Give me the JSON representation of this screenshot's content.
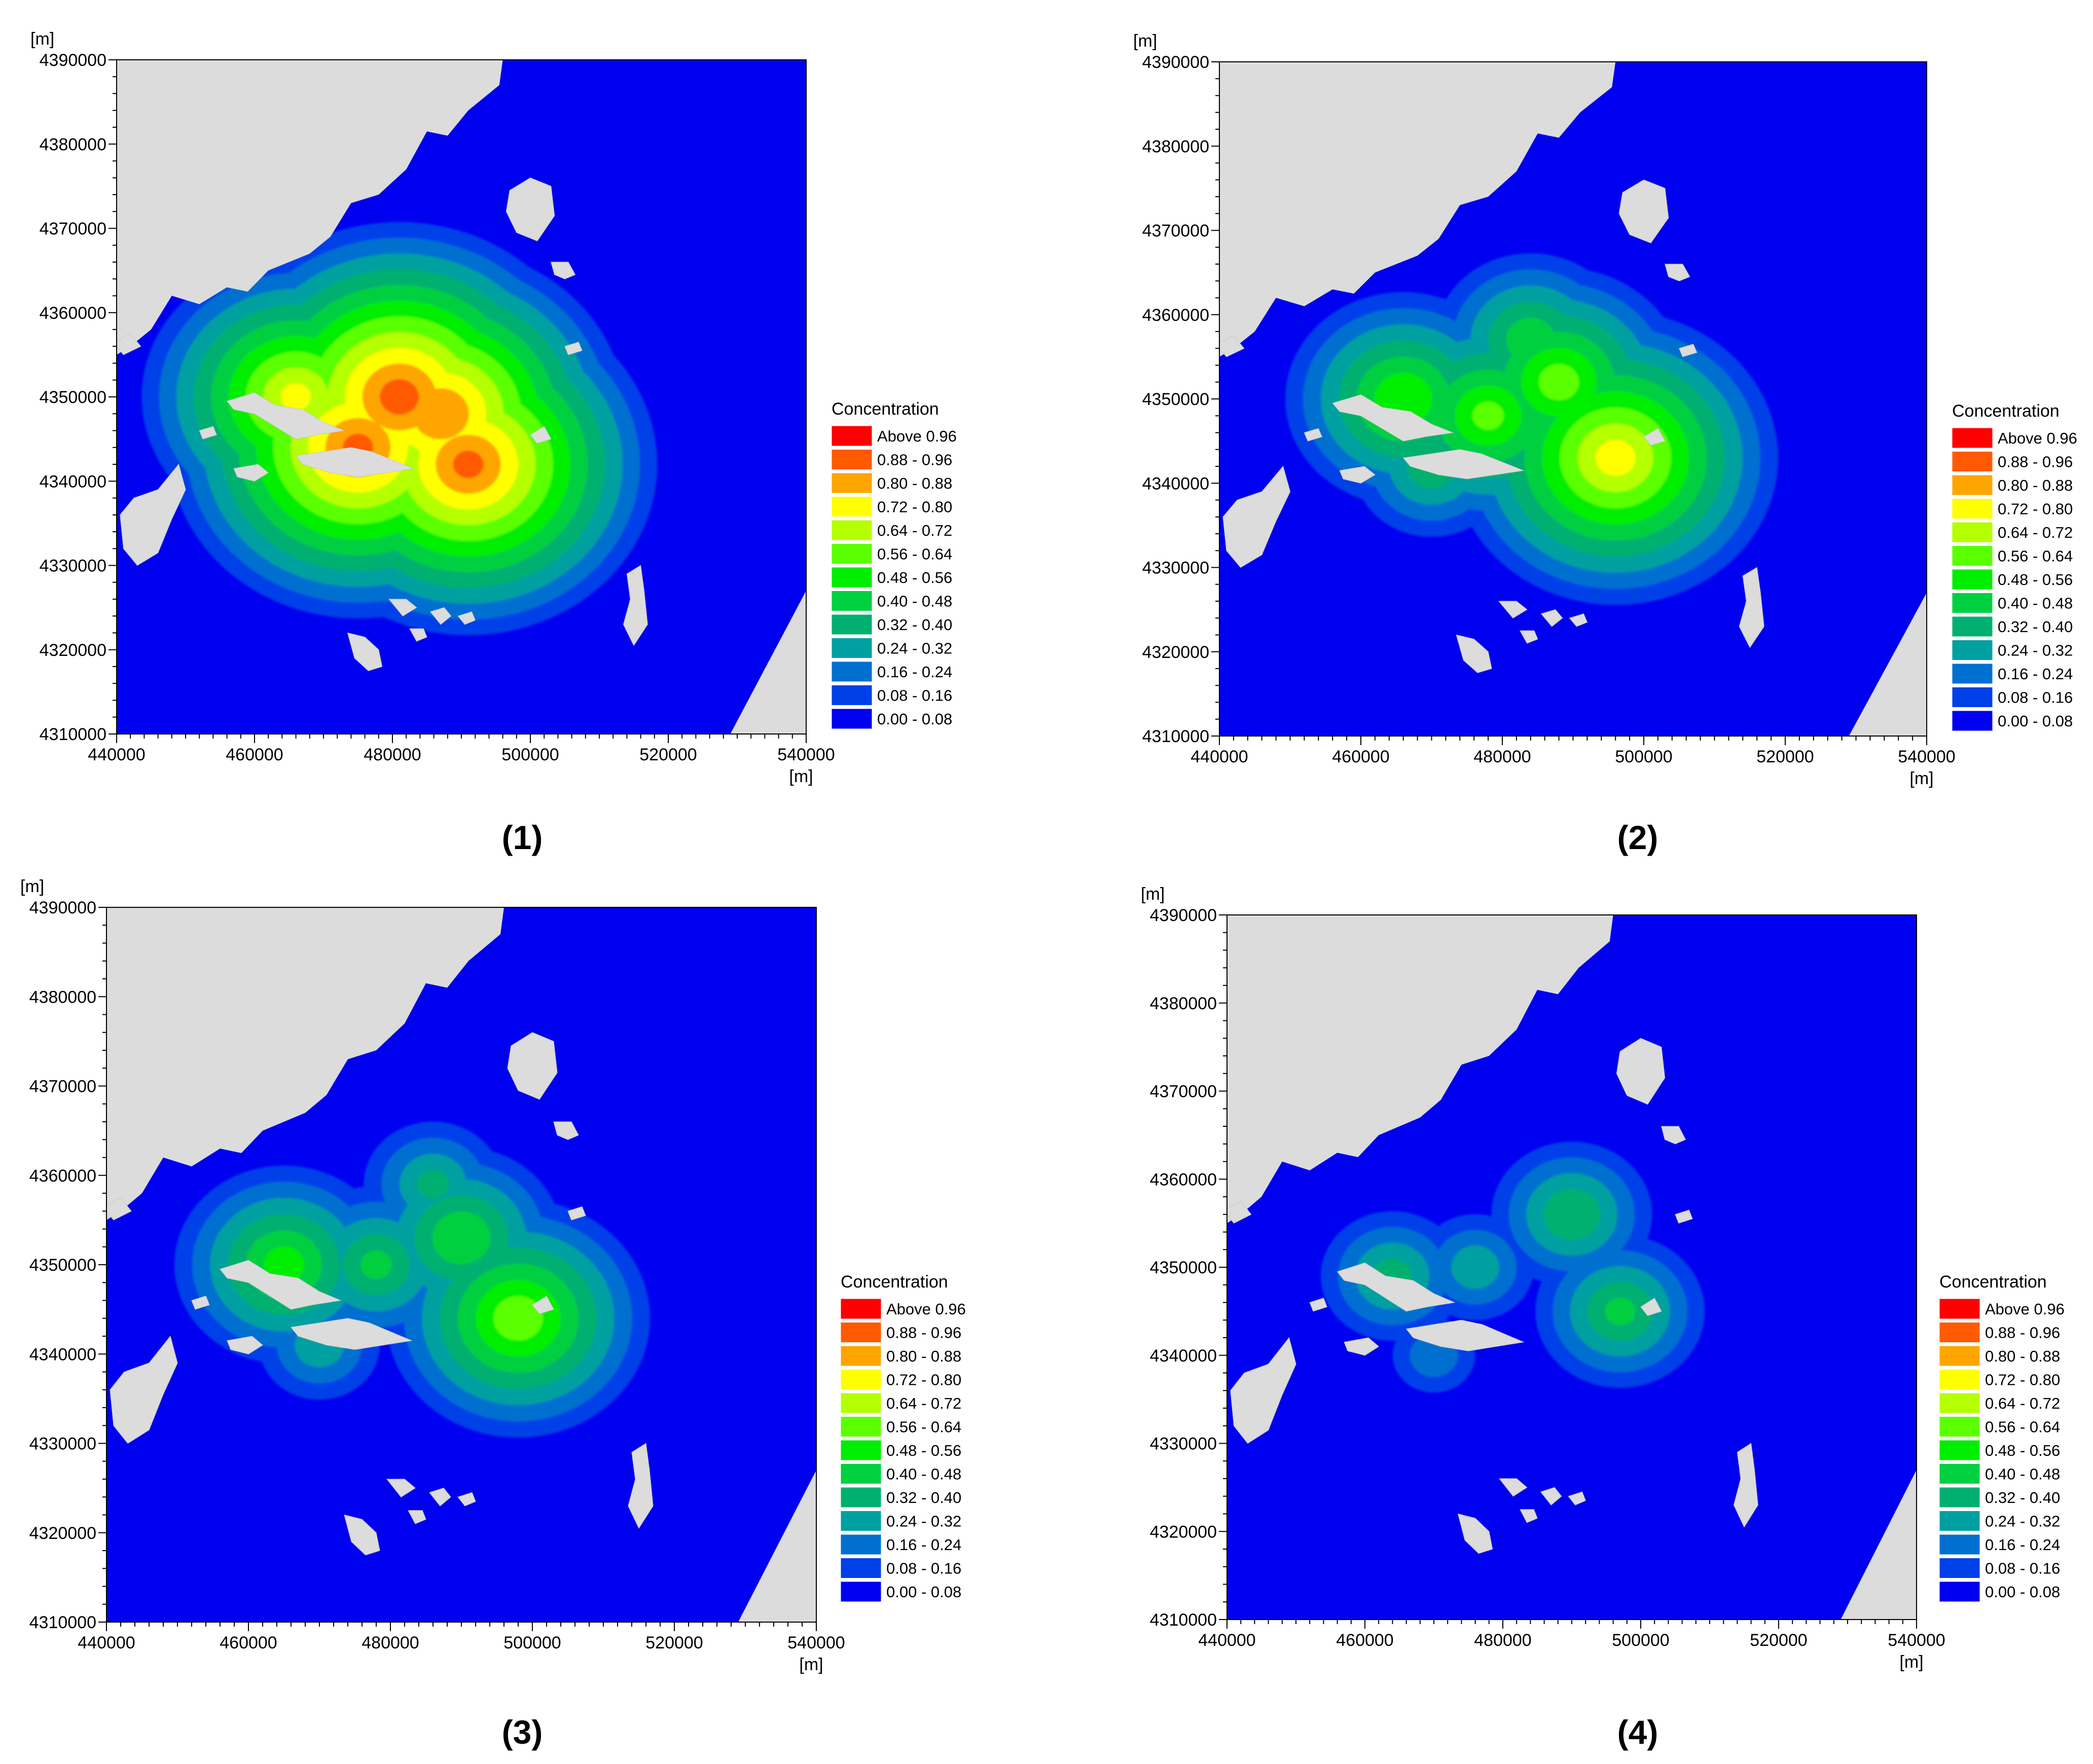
{
  "colors": {
    "sea": "#0000f0",
    "land": "#dcdcdc",
    "background": "#ffffff",
    "text": "#000000"
  },
  "panels": [
    {
      "caption": "(1)"
    },
    {
      "caption": "(2)"
    },
    {
      "caption": "(3)"
    },
    {
      "caption": "(4)"
    }
  ],
  "chart_data": [
    {
      "type": "heatmap",
      "panel": "(1)",
      "x_unit_label": "[m]",
      "y_unit_label": "[m]",
      "xlim": [
        440000,
        540000
      ],
      "ylim": [
        4310000,
        4390000
      ],
      "x_ticks": [
        440000,
        460000,
        480000,
        500000,
        520000,
        540000
      ],
      "y_ticks": [
        4310000,
        4320000,
        4330000,
        4340000,
        4350000,
        4360000,
        4370000,
        4380000,
        4390000
      ],
      "legend_title": "Concentration",
      "legend_position": "right",
      "legend": [
        {
          "label": "Above 0.96",
          "color": "#ff0000"
        },
        {
          "label": "0.88 - 0.96",
          "color": "#ff5a00"
        },
        {
          "label": "0.80 - 0.88",
          "color": "#ffa500"
        },
        {
          "label": "0.72 - 0.80",
          "color": "#ffff00"
        },
        {
          "label": "0.64 - 0.72",
          "color": "#b4ff00"
        },
        {
          "label": "0.56 - 0.64",
          "color": "#5aff00"
        },
        {
          "label": "0.48 - 0.56",
          "color": "#00ee00"
        },
        {
          "label": "0.40 - 0.48",
          "color": "#00d040"
        },
        {
          "label": "0.32 - 0.40",
          "color": "#00b070"
        },
        {
          "label": "0.24 - 0.32",
          "color": "#00a0a0"
        },
        {
          "label": "0.16 - 0.24",
          "color": "#0070d0"
        },
        {
          "label": "0.08 - 0.16",
          "color": "#0040e8"
        },
        {
          "label": "0.00 - 0.08",
          "color": "#0000f0"
        }
      ],
      "plume": [
        {
          "x": 466000,
          "y": 4350000,
          "peak": 0.74
        },
        {
          "x": 475000,
          "y": 4344000,
          "peak": 0.9
        },
        {
          "x": 481000,
          "y": 4350000,
          "peak": 0.92
        },
        {
          "x": 487000,
          "y": 4348000,
          "peak": 0.88
        },
        {
          "x": 491000,
          "y": 4342000,
          "peak": 0.9
        },
        {
          "x": 484000,
          "y": 4356000,
          "peak": 0.6
        },
        {
          "x": 482000,
          "y": 4341000,
          "peak": 0.62
        }
      ]
    },
    {
      "type": "heatmap",
      "panel": "(2)",
      "x_unit_label": "[m]",
      "y_unit_label": "[m]",
      "xlim": [
        440000,
        540000
      ],
      "ylim": [
        4310000,
        4390000
      ],
      "x_ticks": [
        440000,
        460000,
        480000,
        500000,
        520000,
        540000
      ],
      "y_ticks": [
        4310000,
        4320000,
        4330000,
        4340000,
        4350000,
        4360000,
        4370000,
        4380000,
        4390000
      ],
      "legend_title": "Concentration",
      "legend_position": "right",
      "legend": [
        {
          "label": "Above 0.96",
          "color": "#ff0000"
        },
        {
          "label": "0.88 - 0.96",
          "color": "#ff5a00"
        },
        {
          "label": "0.80 - 0.88",
          "color": "#ffa500"
        },
        {
          "label": "0.72 - 0.80",
          "color": "#ffff00"
        },
        {
          "label": "0.64 - 0.72",
          "color": "#b4ff00"
        },
        {
          "label": "0.56 - 0.64",
          "color": "#5aff00"
        },
        {
          "label": "0.48 - 0.56",
          "color": "#00ee00"
        },
        {
          "label": "0.40 - 0.48",
          "color": "#00d040"
        },
        {
          "label": "0.32 - 0.40",
          "color": "#00b070"
        },
        {
          "label": "0.24 - 0.32",
          "color": "#00a0a0"
        },
        {
          "label": "0.16 - 0.24",
          "color": "#0070d0"
        },
        {
          "label": "0.08 - 0.16",
          "color": "#0040e8"
        },
        {
          "label": "0.00 - 0.08",
          "color": "#0000f0"
        }
      ],
      "plume": [
        {
          "x": 466000,
          "y": 4350000,
          "peak": 0.56
        },
        {
          "x": 478000,
          "y": 4348000,
          "peak": 0.58
        },
        {
          "x": 488000,
          "y": 4352000,
          "peak": 0.6
        },
        {
          "x": 496000,
          "y": 4343000,
          "peak": 0.76
        },
        {
          "x": 484000,
          "y": 4357000,
          "peak": 0.46
        },
        {
          "x": 470000,
          "y": 4342000,
          "peak": 0.38
        }
      ]
    },
    {
      "type": "heatmap",
      "panel": "(3)",
      "x_unit_label": "[m]",
      "y_unit_label": "[m]",
      "xlim": [
        440000,
        540000
      ],
      "ylim": [
        4310000,
        4390000
      ],
      "x_ticks": [
        440000,
        460000,
        480000,
        500000,
        520000,
        540000
      ],
      "y_ticks": [
        4310000,
        4320000,
        4330000,
        4340000,
        4350000,
        4360000,
        4370000,
        4380000,
        4390000
      ],
      "legend_title": "Concentration",
      "legend_position": "right",
      "legend": [
        {
          "label": "Above 0.96",
          "color": "#ff0000"
        },
        {
          "label": "0.88 - 0.96",
          "color": "#ff5a00"
        },
        {
          "label": "0.80 - 0.88",
          "color": "#ffa500"
        },
        {
          "label": "0.72 - 0.80",
          "color": "#ffff00"
        },
        {
          "label": "0.64 - 0.72",
          "color": "#b4ff00"
        },
        {
          "label": "0.56 - 0.64",
          "color": "#5aff00"
        },
        {
          "label": "0.48 - 0.56",
          "color": "#00ee00"
        },
        {
          "label": "0.40 - 0.48",
          "color": "#00d040"
        },
        {
          "label": "0.32 - 0.40",
          "color": "#00b070"
        },
        {
          "label": "0.24 - 0.32",
          "color": "#00a0a0"
        },
        {
          "label": "0.16 - 0.24",
          "color": "#0070d0"
        },
        {
          "label": "0.08 - 0.16",
          "color": "#0040e8"
        },
        {
          "label": "0.00 - 0.08",
          "color": "#0000f0"
        }
      ],
      "plume": [
        {
          "x": 465000,
          "y": 4350000,
          "peak": 0.52
        },
        {
          "x": 478000,
          "y": 4350000,
          "peak": 0.42
        },
        {
          "x": 490000,
          "y": 4353000,
          "peak": 0.48
        },
        {
          "x": 498000,
          "y": 4344000,
          "peak": 0.62
        },
        {
          "x": 486000,
          "y": 4359000,
          "peak": 0.34
        },
        {
          "x": 470000,
          "y": 4341000,
          "peak": 0.3
        }
      ]
    },
    {
      "type": "heatmap",
      "panel": "(4)",
      "x_unit_label": "[m]",
      "y_unit_label": "[m]",
      "xlim": [
        440000,
        540000
      ],
      "ylim": [
        4310000,
        4390000
      ],
      "x_ticks": [
        440000,
        460000,
        480000,
        500000,
        520000,
        540000
      ],
      "y_ticks": [
        4310000,
        4320000,
        4330000,
        4340000,
        4350000,
        4360000,
        4370000,
        4380000,
        4390000
      ],
      "legend_title": "Concentration",
      "legend_position": "right",
      "legend": [
        {
          "label": "Above 0.96",
          "color": "#ff0000"
        },
        {
          "label": "0.88 - 0.96",
          "color": "#ff5a00"
        },
        {
          "label": "0.80 - 0.88",
          "color": "#ffa500"
        },
        {
          "label": "0.72 - 0.80",
          "color": "#ffff00"
        },
        {
          "label": "0.64 - 0.72",
          "color": "#b4ff00"
        },
        {
          "label": "0.56 - 0.64",
          "color": "#5aff00"
        },
        {
          "label": "0.48 - 0.56",
          "color": "#00ee00"
        },
        {
          "label": "0.40 - 0.48",
          "color": "#00d040"
        },
        {
          "label": "0.32 - 0.40",
          "color": "#00b070"
        },
        {
          "label": "0.24 - 0.32",
          "color": "#00a0a0"
        },
        {
          "label": "0.16 - 0.24",
          "color": "#0070d0"
        },
        {
          "label": "0.08 - 0.16",
          "color": "#0040e8"
        },
        {
          "label": "0.00 - 0.08",
          "color": "#0000f0"
        }
      ],
      "plume": [
        {
          "x": 464000,
          "y": 4349000,
          "peak": 0.36
        },
        {
          "x": 476000,
          "y": 4350000,
          "peak": 0.3
        },
        {
          "x": 490000,
          "y": 4356000,
          "peak": 0.4
        },
        {
          "x": 497000,
          "y": 4345000,
          "peak": 0.42
        },
        {
          "x": 470000,
          "y": 4340000,
          "peak": 0.22
        }
      ]
    }
  ],
  "map": {
    "coast": [
      [
        440000,
        4390000
      ],
      [
        496000,
        4390000
      ],
      [
        495500,
        4387000
      ],
      [
        491000,
        4384000
      ],
      [
        488000,
        4381000
      ],
      [
        485000,
        4381500
      ],
      [
        482000,
        4377000
      ],
      [
        478000,
        4374000
      ],
      [
        474000,
        4373000
      ],
      [
        471000,
        4369000
      ],
      [
        468000,
        4367000
      ],
      [
        462000,
        4365000
      ],
      [
        459000,
        4362500
      ],
      [
        456000,
        4363000
      ],
      [
        452000,
        4361000
      ],
      [
        448000,
        4362000
      ],
      [
        445000,
        4358000
      ],
      [
        442000,
        4356000
      ],
      [
        440000,
        4355000
      ]
    ],
    "se_land": [
      [
        540000,
        4327000
      ],
      [
        540000,
        4310000
      ],
      [
        529000,
        4310000
      ]
    ],
    "islands": [
      [
        [
          449000,
          4342000
        ],
        [
          446000,
          4339000
        ],
        [
          442500,
          4338000
        ],
        [
          440500,
          4336000
        ],
        [
          441000,
          4332000
        ],
        [
          443000,
          4330000
        ],
        [
          446000,
          4331500
        ],
        [
          448000,
          4335500
        ],
        [
          450000,
          4339000
        ]
      ],
      [
        [
          456000,
          4349500
        ],
        [
          460000,
          4350500
        ],
        [
          463000,
          4349000
        ],
        [
          467000,
          4348500
        ],
        [
          470000,
          4347000
        ],
        [
          473000,
          4346000
        ],
        [
          469000,
          4345500
        ],
        [
          466000,
          4345000
        ],
        [
          463000,
          4346500
        ],
        [
          460000,
          4348000
        ],
        [
          457000,
          4348500
        ]
      ],
      [
        [
          466000,
          4343000
        ],
        [
          470000,
          4343500
        ],
        [
          474000,
          4344000
        ],
        [
          477000,
          4343500
        ],
        [
          480000,
          4342500
        ],
        [
          483000,
          4341500
        ],
        [
          479000,
          4341000
        ],
        [
          475000,
          4340500
        ],
        [
          471000,
          4341000
        ],
        [
          467000,
          4342000
        ]
      ],
      [
        [
          457000,
          4341500
        ],
        [
          460500,
          4342000
        ],
        [
          462000,
          4341000
        ],
        [
          460000,
          4340000
        ],
        [
          457500,
          4340500
        ]
      ],
      [
        [
          452000,
          4346000
        ],
        [
          454000,
          4346500
        ],
        [
          454500,
          4345500
        ],
        [
          452500,
          4345000
        ]
      ],
      [
        [
          439500,
          4356500
        ],
        [
          442000,
          4357500
        ],
        [
          443500,
          4356000
        ],
        [
          441000,
          4355000
        ]
      ],
      [
        [
          497000,
          4374500
        ],
        [
          500000,
          4376000
        ],
        [
          503000,
          4375000
        ],
        [
          503500,
          4371500
        ],
        [
          501000,
          4368500
        ],
        [
          498000,
          4369500
        ],
        [
          496500,
          4372000
        ]
      ],
      [
        [
          503000,
          4366000
        ],
        [
          505500,
          4366000
        ],
        [
          506500,
          4364500
        ],
        [
          505000,
          4364000
        ],
        [
          503500,
          4364500
        ]
      ],
      [
        [
          500000,
          4345500
        ],
        [
          502000,
          4346500
        ],
        [
          503000,
          4345000
        ],
        [
          501000,
          4344500
        ]
      ],
      [
        [
          505000,
          4356000
        ],
        [
          507000,
          4356500
        ],
        [
          507500,
          4355500
        ],
        [
          505500,
          4355000
        ]
      ],
      [
        [
          514000,
          4329000
        ],
        [
          516000,
          4330000
        ],
        [
          516500,
          4327000
        ],
        [
          517000,
          4323000
        ],
        [
          515000,
          4320500
        ],
        [
          513500,
          4323000
        ],
        [
          514500,
          4326000
        ]
      ],
      [
        [
          473500,
          4322000
        ],
        [
          476000,
          4321500
        ],
        [
          478000,
          4320000
        ],
        [
          478500,
          4318000
        ],
        [
          476500,
          4317500
        ],
        [
          474500,
          4319000
        ]
      ],
      [
        [
          479500,
          4326000
        ],
        [
          482000,
          4326000
        ],
        [
          483500,
          4325000
        ],
        [
          481500,
          4324000
        ]
      ],
      [
        [
          485500,
          4324500
        ],
        [
          487500,
          4325000
        ],
        [
          488500,
          4324000
        ],
        [
          487000,
          4323000
        ]
      ],
      [
        [
          482500,
          4322500
        ],
        [
          484500,
          4322500
        ],
        [
          485000,
          4321500
        ],
        [
          483500,
          4321000
        ]
      ],
      [
        [
          489500,
          4324000
        ],
        [
          491500,
          4324500
        ],
        [
          492000,
          4323500
        ],
        [
          490500,
          4323000
        ]
      ]
    ]
  }
}
